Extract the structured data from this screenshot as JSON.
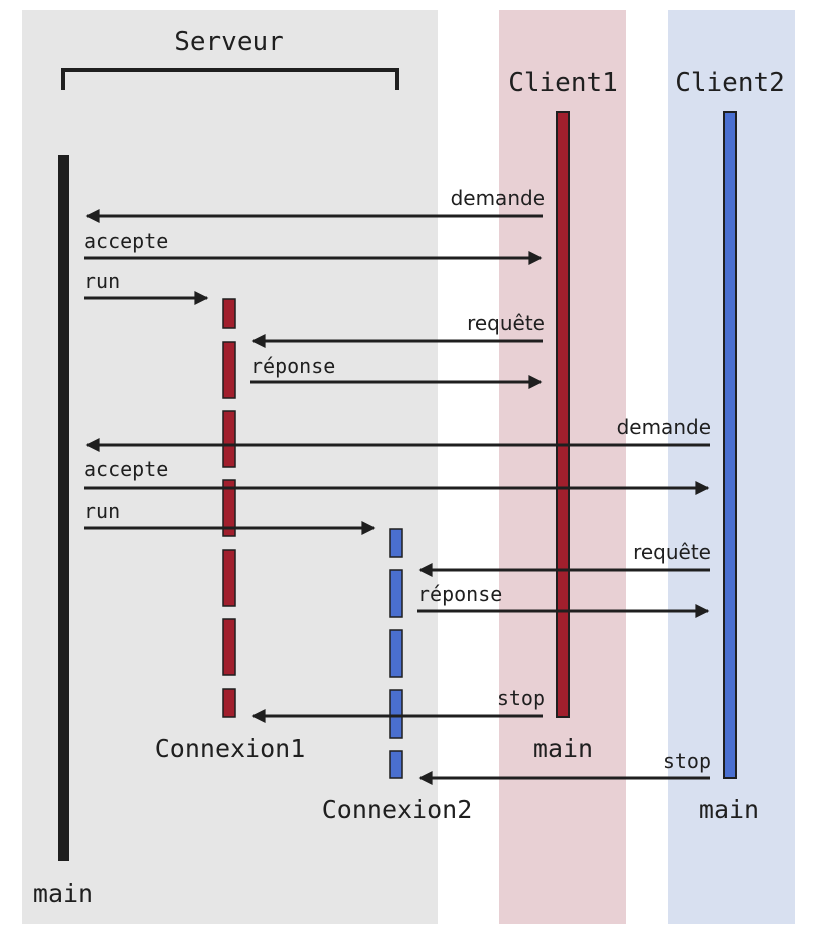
{
  "colors": {
    "server_bg": "#e6e6e6",
    "client1_bg": "#e8d0d4",
    "client2_bg": "#d8e0f0",
    "black": "#1f1f1f",
    "red": "#a11f2d",
    "blue": "#4a6fcf"
  },
  "labels": {
    "serveur": "Serveur",
    "client1": "Client1",
    "client2": "Client2",
    "server_main": "main",
    "client1_main": "main",
    "client2_main": "main",
    "connexion1": "Connexion1",
    "connexion2": "Connexion2"
  },
  "messages": {
    "demande_1": "demande",
    "accepte_1": "accepte",
    "run_1": "run",
    "requete_1": "requête",
    "reponse_1": "réponse",
    "demande_2": "demande",
    "accepte_2": "accepte",
    "run_2": "run",
    "requete_2": "requête",
    "reponse_2": "réponse",
    "stop_1": "stop",
    "stop_2": "stop"
  }
}
